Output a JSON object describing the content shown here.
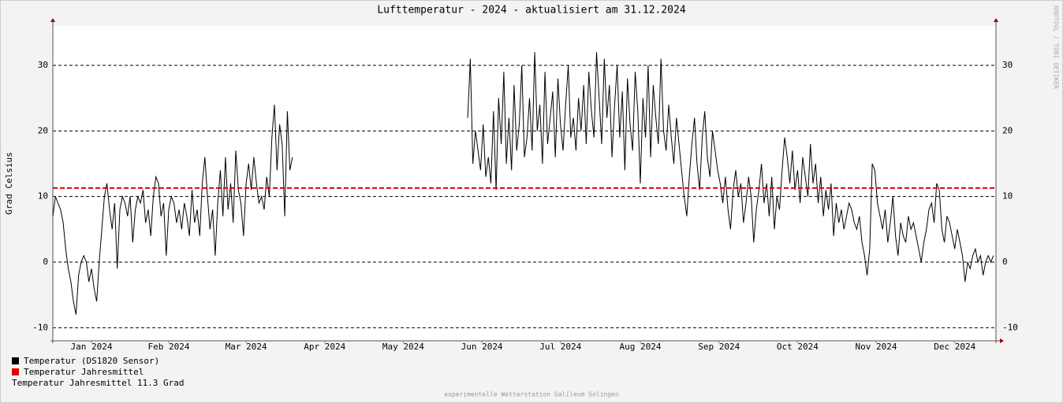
{
  "chart_data": {
    "type": "line",
    "title": "Lufttemperatur - 2024 - aktualisiert am 31.12.2024",
    "y_label": "Grad Celsius",
    "side_label": "RRDTOOL / TOBI OETIKER",
    "footer": "experimentelle Wetterstation Galileum Solingen",
    "xlim": [
      0,
      366
    ],
    "ylim": [
      -12,
      36
    ],
    "yticks": [
      -10,
      0,
      10,
      20,
      30
    ],
    "xticks": [
      {
        "value": 15,
        "label": "Jan 2024"
      },
      {
        "value": 45,
        "label": "Feb 2024"
      },
      {
        "value": 75,
        "label": "Mar 2024"
      },
      {
        "value": 105.5,
        "label": "Apr 2024"
      },
      {
        "value": 136,
        "label": "May 2024"
      },
      {
        "value": 166.5,
        "label": "Jun 2024"
      },
      {
        "value": 197,
        "label": "Jul 2024"
      },
      {
        "value": 228,
        "label": "Aug 2024"
      },
      {
        "value": 258.5,
        "label": "Sep 2024"
      },
      {
        "value": 289,
        "label": "Oct 2024"
      },
      {
        "value": 319.5,
        "label": "Nov 2024"
      },
      {
        "value": 350,
        "label": "Dec 2024"
      }
    ],
    "grid": true,
    "x": [
      0,
      1,
      2,
      3,
      4,
      5,
      6,
      7,
      8,
      9,
      10,
      11,
      12,
      13,
      14,
      15,
      16,
      17,
      18,
      19,
      20,
      21,
      22,
      23,
      24,
      25,
      26,
      27,
      28,
      29,
      30,
      31,
      32,
      33,
      34,
      35,
      36,
      37,
      38,
      39,
      40,
      41,
      42,
      43,
      44,
      45,
      46,
      47,
      48,
      49,
      50,
      51,
      52,
      53,
      54,
      55,
      56,
      57,
      58,
      59,
      60,
      61,
      62,
      63,
      64,
      65,
      66,
      67,
      68,
      69,
      70,
      71,
      72,
      73,
      74,
      75,
      76,
      77,
      78,
      79,
      80,
      81,
      82,
      83,
      84,
      85,
      86,
      87,
      88,
      89,
      90,
      91,
      92,
      93,
      94,
      161,
      162,
      163,
      164,
      165,
      166,
      167,
      168,
      169,
      170,
      171,
      172,
      173,
      174,
      175,
      176,
      177,
      178,
      179,
      180,
      181,
      182,
      183,
      184,
      185,
      186,
      187,
      188,
      189,
      190,
      191,
      192,
      193,
      194,
      195,
      196,
      197,
      198,
      199,
      200,
      201,
      202,
      203,
      204,
      205,
      206,
      207,
      208,
      209,
      210,
      211,
      212,
      213,
      214,
      215,
      216,
      217,
      218,
      219,
      220,
      221,
      222,
      223,
      224,
      225,
      226,
      227,
      228,
      229,
      230,
      231,
      232,
      233,
      234,
      235,
      236,
      237,
      238,
      239,
      240,
      241,
      242,
      243,
      244,
      245,
      246,
      247,
      248,
      249,
      250,
      251,
      252,
      253,
      254,
      255,
      256,
      257,
      258,
      259,
      260,
      261,
      262,
      263,
      264,
      265,
      266,
      267,
      268,
      269,
      270,
      271,
      272,
      273,
      274,
      275,
      276,
      277,
      278,
      279,
      280,
      281,
      282,
      283,
      284,
      285,
      286,
      287,
      288,
      289,
      290,
      291,
      292,
      293,
      294,
      295,
      296,
      297,
      298,
      299,
      300,
      301,
      302,
      303,
      304,
      305,
      306,
      307,
      308,
      309,
      310,
      311,
      312,
      313,
      314,
      315,
      316,
      317,
      318,
      319,
      320,
      321,
      322,
      323,
      324,
      325,
      326,
      327,
      328,
      329,
      330,
      331,
      332,
      333,
      334,
      335,
      336,
      337,
      338,
      339,
      340,
      341,
      342,
      343,
      344,
      345,
      346,
      347,
      348,
      349,
      350,
      351,
      352,
      353,
      354,
      355,
      356,
      357,
      358,
      359,
      360,
      361,
      362,
      363,
      364,
      365
    ],
    "series": [
      {
        "name": "Temperatur (DS1820 Sensor)",
        "color": "#000000",
        "values": [
          7,
          10,
          9,
          8,
          6,
          2,
          -1,
          -3,
          -6,
          -8,
          -2,
          0,
          1,
          0,
          -3,
          -1,
          -4,
          -6,
          0,
          5,
          10,
          12,
          8,
          5,
          9,
          -1,
          8,
          10,
          9,
          7,
          10,
          3,
          8,
          10,
          9,
          11,
          6,
          8,
          4,
          10,
          13,
          12,
          7,
          9,
          1,
          8,
          10,
          9,
          6,
          8,
          5,
          9,
          7,
          4,
          11,
          6,
          8,
          4,
          12,
          16,
          10,
          5,
          8,
          1,
          9,
          14,
          7,
          16,
          8,
          12,
          6,
          17,
          11,
          9,
          4,
          12,
          15,
          11,
          16,
          12,
          9,
          10,
          8,
          13,
          10,
          19,
          24,
          14,
          21,
          18,
          7,
          23,
          14,
          16,
          null,
          22,
          31,
          15,
          20,
          17,
          14,
          21,
          13,
          16,
          12,
          23,
          11,
          25,
          18,
          29,
          15,
          22,
          14,
          27,
          17,
          21,
          30,
          16,
          19,
          25,
          17,
          32,
          20,
          24,
          15,
          29,
          18,
          22,
          26,
          16,
          28,
          21,
          17,
          24,
          30,
          19,
          22,
          17,
          25,
          20,
          27,
          18,
          29,
          23,
          19,
          32,
          25,
          18,
          31,
          22,
          27,
          16,
          24,
          30,
          19,
          26,
          14,
          28,
          21,
          17,
          29,
          23,
          12,
          25,
          19,
          30,
          16,
          27,
          22,
          18,
          31,
          20,
          17,
          24,
          19,
          15,
          22,
          18,
          14,
          10,
          7,
          13,
          18,
          22,
          15,
          11,
          19,
          23,
          16,
          13,
          20,
          17,
          14,
          12,
          9,
          13,
          8,
          5,
          11,
          14,
          10,
          12,
          6,
          9,
          13,
          10,
          3,
          8,
          11,
          15,
          9,
          12,
          7,
          13,
          5,
          10,
          8,
          14,
          19,
          16,
          12,
          17,
          11,
          14,
          9,
          16,
          13,
          10,
          18,
          12,
          15,
          9,
          13,
          7,
          11,
          8,
          12,
          4,
          9,
          6,
          8,
          5,
          7,
          9,
          8,
          6,
          5,
          7,
          3,
          1,
          -2,
          2,
          15,
          14,
          9,
          7,
          5,
          8,
          3,
          6,
          10,
          4,
          1,
          6,
          4,
          3,
          7,
          5,
          6,
          4,
          2,
          0,
          3,
          5,
          8,
          9,
          6,
          12,
          11,
          5,
          3,
          7,
          6,
          4,
          2,
          5,
          3,
          1,
          -3,
          0,
          -1,
          1,
          2,
          0,
          1,
          -2,
          0,
          1,
          0,
          1
        ]
      }
    ],
    "mean": {
      "name": "Temperatur Jahresmittel",
      "color": "#e00000",
      "value": 11.3
    },
    "mean_text": "Temperatur Jahresmittel 11.3 Grad"
  }
}
